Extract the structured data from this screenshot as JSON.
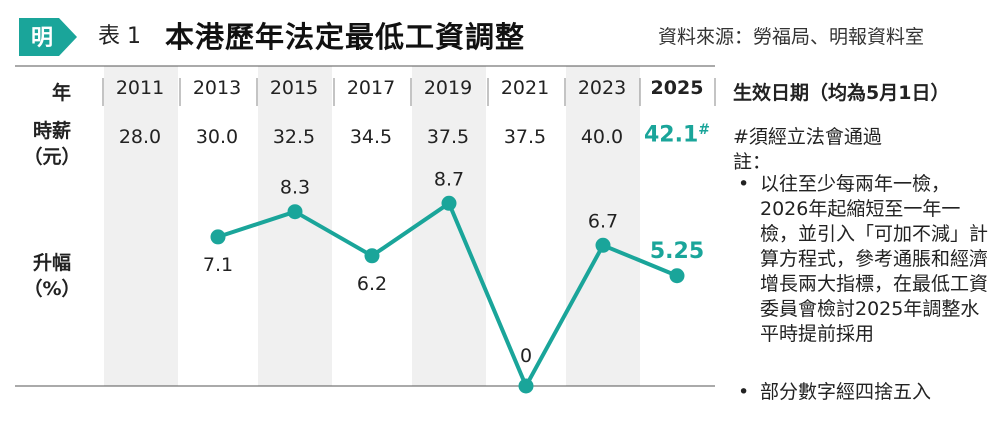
{
  "header": {
    "logo_char": "明",
    "table_label": "表 1",
    "title": "本港歷年法定最低工資調整",
    "source": "資料來源：勞福局、明報資料室"
  },
  "row_labels": {
    "year": "年",
    "wage_line1": "時薪",
    "wage_line2": "（元）",
    "rise_line1": "升幅",
    "rise_line2": "（%）"
  },
  "colors": {
    "accent": "#1aa59a",
    "column_bg": "#f0f0f0",
    "text": "#222222"
  },
  "chart_data": {
    "type": "line",
    "categories": [
      "2011",
      "2013",
      "2015",
      "2017",
      "2019",
      "2021",
      "2023",
      "2025"
    ],
    "hourly_wage": [
      "28.0",
      "30.0",
      "32.5",
      "34.5",
      "37.5",
      "37.5",
      "40.0",
      "42.1"
    ],
    "hourly_wage_mark_2025": "#",
    "series": [
      {
        "values": [
          null,
          7.1,
          8.3,
          6.2,
          8.7,
          0,
          6.7,
          5.25
        ]
      }
    ],
    "point_labels": [
      null,
      "7.1",
      "8.3",
      "6.2",
      "8.7",
      "0",
      "6.7",
      "5.25"
    ],
    "ylim": [
      0,
      10
    ],
    "grid": false,
    "legend": "none"
  },
  "notes": {
    "effective_date": "生效日期（均為5月1日）",
    "hash_note": "#須經立法會通過",
    "remarks_title": "註：",
    "items": [
      "以往至少每兩年一檢，2026年起縮短至一年一檢，並引入「可加不減」計算方程式，參考通脹和經濟增長兩大指標，在最低工資委員會檢討2025年調整水平時提前採用",
      "部分數字經四捨五入"
    ]
  }
}
